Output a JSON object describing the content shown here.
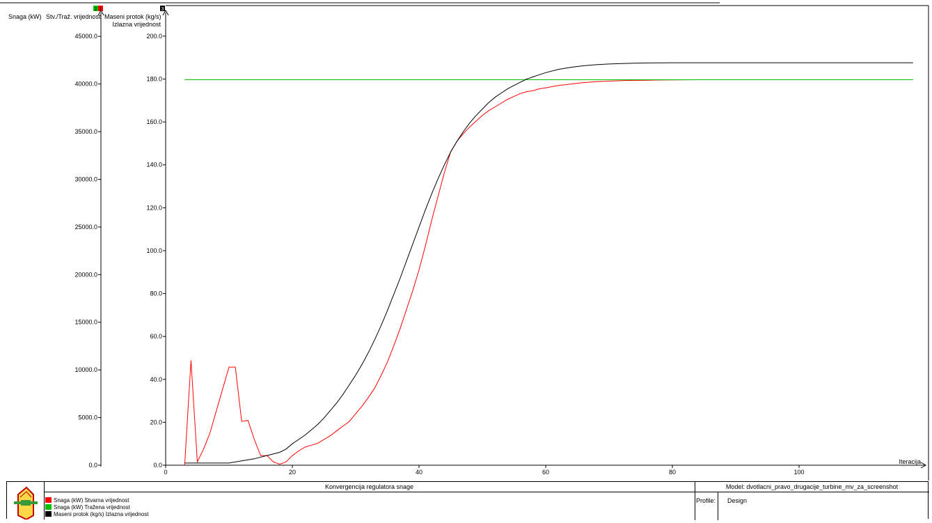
{
  "header": {
    "title": "Konvergencija regulatora snage"
  },
  "model": {
    "label": "Model: dvotlacni_pravo_drugacije_turbine_mv_za_screenshot"
  },
  "profile": {
    "label": "Profile:",
    "value": "Design"
  },
  "colors": {
    "stvarna": "#ff0000",
    "trazena": "#00c000",
    "maseni": "#000000"
  },
  "legend": [
    {
      "label": "Snaga (kW) Stvarna vrijednost",
      "color": "#ff0000"
    },
    {
      "label": "Snaga (kW) Tražena vrijednost",
      "color": "#00c000"
    },
    {
      "label": "Maseni protok (kg/s) Izlazna vrijednost",
      "color": "#000000"
    }
  ],
  "axis_badges": {
    "left": [
      "2",
      "1"
    ],
    "right": "3"
  },
  "logo_icon": "turbine-valve-icon",
  "chart_data": {
    "type": "line",
    "xlabel": "Iteracija",
    "xlim": [
      0,
      120
    ],
    "x_ticks": [
      "0",
      "20",
      "40",
      "60",
      "80",
      "100"
    ],
    "y_left": {
      "label_1": "Snaga (kW)",
      "label_2": "Stv./Traž. vrijednost",
      "ylim": [
        0,
        47500
      ],
      "ticks": [
        "0.0",
        "5000.0",
        "10000.0",
        "15000.0",
        "20000.0",
        "25000.0",
        "30000.0",
        "35000.0",
        "40000.0",
        "45000.0"
      ]
    },
    "y_right": {
      "label_1": "Maseni protok (kg/s)",
      "label_2": "Izlazna vrijednost",
      "ylim": [
        0,
        211
      ],
      "ticks": [
        "0.0",
        "20.0",
        "40.0",
        "60.0",
        "80.0",
        "100.0",
        "120.0",
        "140.0",
        "160.0",
        "180.0",
        "200.0"
      ]
    },
    "series": [
      {
        "name": "Snaga (kW) Stvarna vrijednost",
        "axis": "left",
        "color": "#ff0000",
        "x": [
          3,
          4,
          5,
          6,
          7,
          8,
          9,
          10,
          11,
          12,
          13,
          14,
          15,
          16,
          17,
          18,
          19,
          20,
          21,
          22,
          23,
          24,
          25,
          26,
          27,
          28,
          29,
          30,
          31,
          32,
          33,
          34,
          35,
          36,
          37,
          38,
          39,
          40,
          41,
          42,
          43,
          44,
          45,
          46,
          47,
          48,
          49,
          50,
          51,
          52,
          53,
          54,
          55,
          56,
          57,
          58,
          59,
          60,
          62,
          64,
          66,
          68,
          70,
          72,
          74,
          76,
          78,
          80,
          82,
          84,
          86
        ],
        "values": [
          0,
          11000,
          350,
          1700,
          3400,
          5700,
          8000,
          10300,
          10300,
          4600,
          4700,
          2700,
          1000,
          1000,
          350,
          100,
          350,
          1000,
          1500,
          1900,
          2100,
          2300,
          2700,
          3100,
          3600,
          4100,
          4600,
          5400,
          6200,
          7100,
          8100,
          9400,
          10800,
          12500,
          14300,
          16300,
          18300,
          20500,
          23000,
          25700,
          28200,
          30700,
          32900,
          34000,
          34800,
          35500,
          36100,
          36700,
          37200,
          37600,
          38000,
          38400,
          38700,
          39000,
          39200,
          39300,
          39500,
          39600,
          39850,
          40000,
          40150,
          40250,
          40300,
          40350,
          40380,
          40400,
          40420,
          40430,
          40440,
          40450,
          40450
        ]
      },
      {
        "name": "Snaga (kW) Tražena vrijednost",
        "axis": "left",
        "color": "#00c000",
        "x": [
          3,
          118
        ],
        "values": [
          40450,
          40450
        ]
      },
      {
        "name": "Maseni protok (kg/s) Izlazna vrijednost",
        "axis": "right",
        "color": "#000000",
        "x": [
          3,
          6,
          10,
          12,
          14,
          16,
          18,
          19,
          20,
          21,
          22,
          23,
          24,
          25,
          26,
          27,
          28,
          29,
          30,
          31,
          32,
          33,
          34,
          35,
          36,
          37,
          38,
          39,
          40,
          41,
          42,
          43,
          44,
          45,
          46,
          47,
          48,
          49,
          50,
          51,
          52,
          53,
          54,
          55,
          56,
          57,
          58,
          59,
          60,
          62,
          64,
          66,
          68,
          70,
          72,
          74,
          76,
          80,
          90,
          100,
          110,
          118
        ],
        "values": [
          1,
          1,
          1,
          2,
          3,
          4.5,
          6,
          7.5,
          10,
          12,
          14,
          16.5,
          19,
          22,
          25.5,
          29,
          33,
          37.5,
          42,
          47,
          52.5,
          58.5,
          65,
          72,
          79.5,
          87,
          95,
          103,
          111,
          119,
          126.5,
          133.5,
          140,
          146,
          151,
          155.5,
          159.5,
          163,
          166,
          169,
          171.5,
          173.5,
          175.5,
          177,
          178.5,
          180,
          181,
          182,
          183,
          184.5,
          185.5,
          186.2,
          186.7,
          187,
          187.2,
          187.4,
          187.5,
          187.6,
          187.6,
          187.6,
          187.6,
          187.6
        ]
      }
    ]
  }
}
